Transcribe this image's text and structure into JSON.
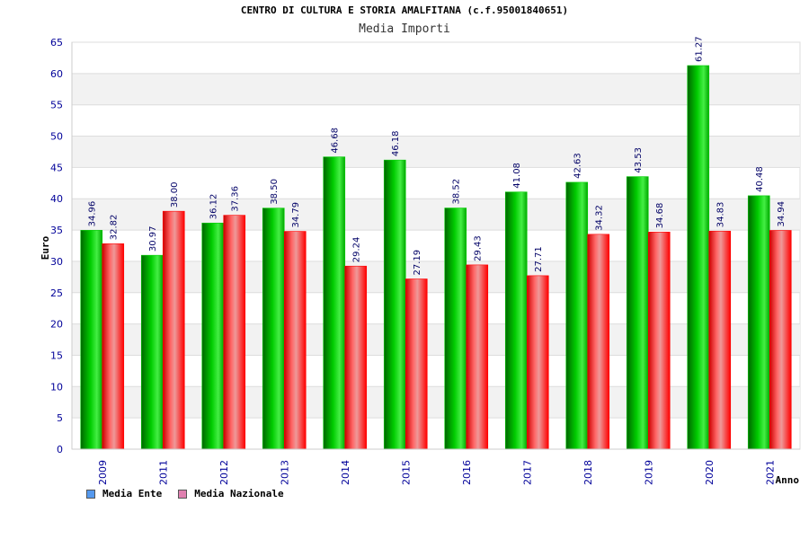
{
  "colors": {
    "ente": "#00cc00",
    "nazionale": "#ff0000",
    "legend_ente": "#5599ee",
    "legend_nazionale": "#e080b0",
    "axis_text": "#000099",
    "value_text": "#000066"
  },
  "chart_data": {
    "type": "bar",
    "title": "CENTRO DI CULTURA E STORIA AMALFITANA (c.f.95001840651)",
    "subtitle": "Media Importi",
    "xlabel": "Anno",
    "ylabel": "Euro",
    "ylim": [
      0,
      65
    ],
    "y_ticks": [
      0,
      5,
      10,
      15,
      20,
      25,
      30,
      35,
      40,
      45,
      50,
      55,
      60,
      65
    ],
    "categories": [
      "2009",
      "2011",
      "2012",
      "2013",
      "2014",
      "2015",
      "2016",
      "2017",
      "2018",
      "2019",
      "2020",
      "2021"
    ],
    "series": [
      {
        "name": "Media Ente",
        "values": [
          34.96,
          30.97,
          36.12,
          38.5,
          46.68,
          46.18,
          38.52,
          41.08,
          42.63,
          43.53,
          61.27,
          40.48
        ]
      },
      {
        "name": "Media Nazionale",
        "values": [
          32.82,
          38.0,
          37.36,
          34.79,
          29.24,
          27.19,
          29.43,
          27.71,
          34.32,
          34.68,
          34.83,
          34.94
        ]
      }
    ],
    "legend_position": "bottom-left",
    "grid": true
  }
}
